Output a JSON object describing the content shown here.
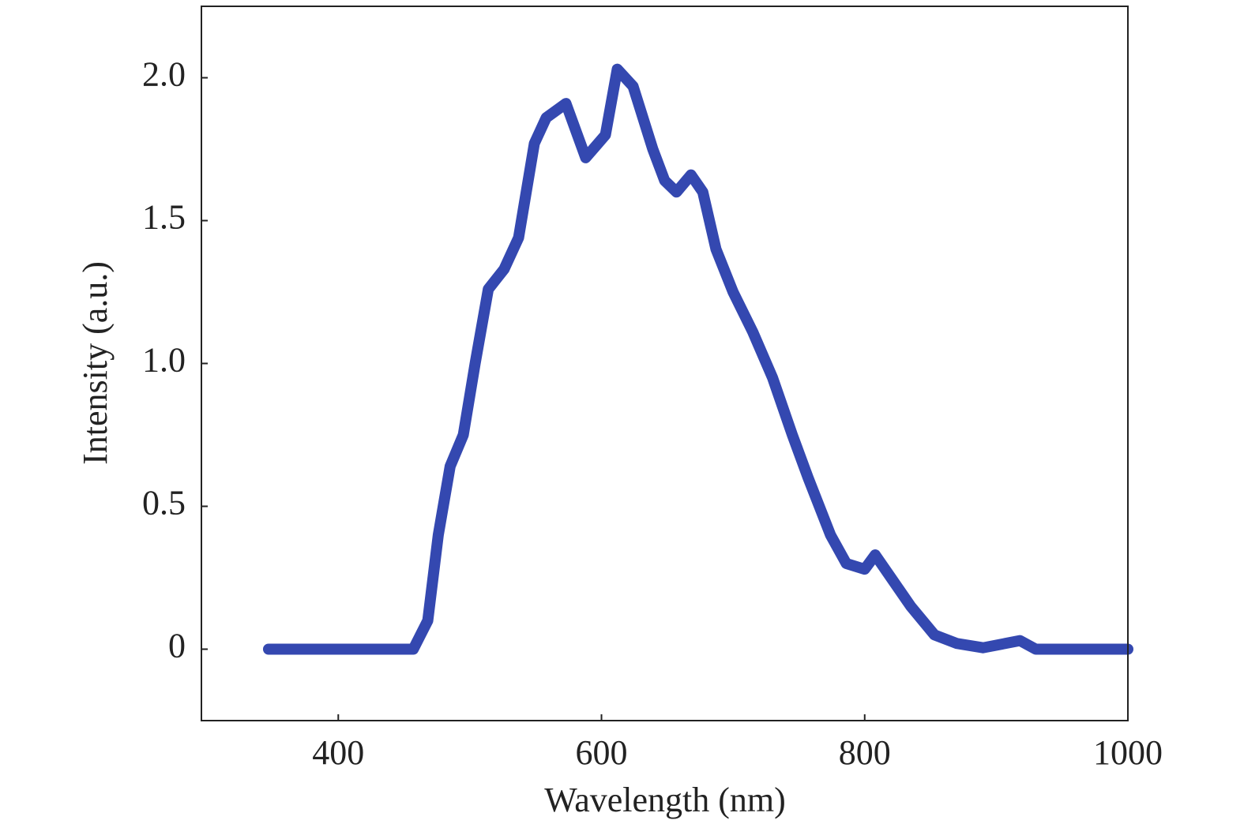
{
  "chart_data": {
    "type": "line",
    "x_label": "Wavelength (nm)",
    "y_label": "Intensity (a.u.)",
    "x": [
      347,
      457,
      468,
      476,
      485,
      495,
      504,
      514,
      526,
      537,
      549,
      558,
      573,
      588,
      603,
      612,
      624,
      639,
      648,
      657,
      668,
      677,
      687,
      700,
      715,
      730,
      745,
      757,
      774,
      786,
      800,
      808,
      820,
      835,
      853,
      870,
      890,
      918,
      930,
      1000
    ],
    "series": [
      {
        "name": "Intensity",
        "color": "#3448b0",
        "values": [
          0,
          0,
          0.1,
          0.4,
          0.64,
          0.75,
          1.0,
          1.26,
          1.33,
          1.44,
          1.77,
          1.86,
          1.91,
          1.72,
          1.8,
          2.03,
          1.97,
          1.75,
          1.64,
          1.6,
          1.66,
          1.6,
          1.4,
          1.25,
          1.11,
          0.95,
          0.75,
          0.6,
          0.4,
          0.3,
          0.28,
          0.33,
          0.25,
          0.15,
          0.05,
          0.02,
          0.005,
          0.03,
          0,
          0
        ]
      }
    ],
    "xlim": [
      296,
      1000
    ],
    "ylim": [
      -0.25,
      2.25
    ],
    "xticks": [
      400,
      600,
      800,
      1000
    ],
    "yticks": [
      0,
      0.5,
      {
        "value": 1,
        "label": "1.0"
      },
      1.5,
      {
        "value": 2,
        "label": "2.0"
      }
    ]
  }
}
